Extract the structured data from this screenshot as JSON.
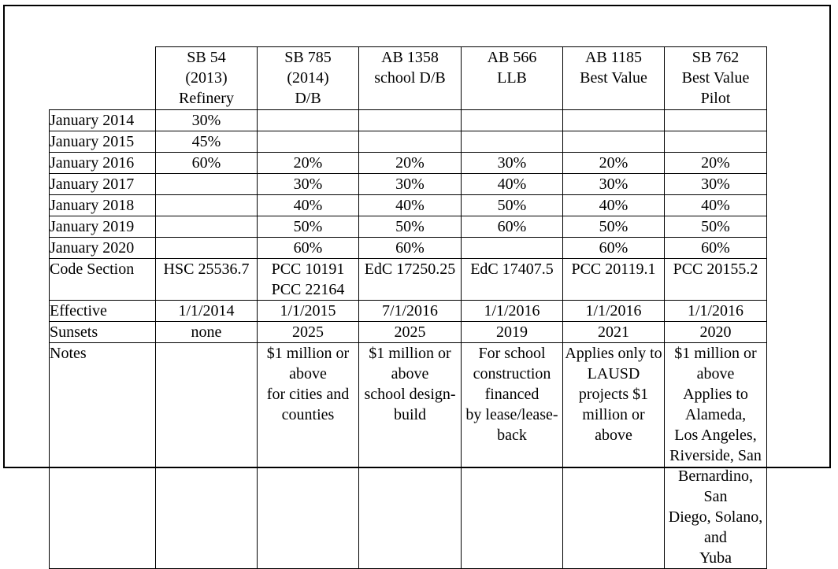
{
  "columns": [
    {
      "lines": [
        "SB 54",
        "(2013)",
        "Refinery"
      ]
    },
    {
      "lines": [
        "SB 785",
        "(2014)",
        "D/B"
      ]
    },
    {
      "lines": [
        "AB 1358",
        "school D/B"
      ]
    },
    {
      "lines": [
        "AB 566",
        "LLB"
      ]
    },
    {
      "lines": [
        "AB 1185",
        "Best Value"
      ]
    },
    {
      "lines": [
        "SB 762",
        "Best Value",
        "Pilot"
      ]
    }
  ],
  "year_rows": [
    {
      "label": "January  2014",
      "values": [
        "30%",
        "",
        "",
        "",
        "",
        ""
      ]
    },
    {
      "label": "January  2015",
      "values": [
        "45%",
        "",
        "",
        "",
        "",
        ""
      ]
    },
    {
      "label": "January  2016",
      "values": [
        "60%",
        "20%",
        "20%",
        "30%",
        "20%",
        "20%"
      ]
    },
    {
      "label": "January  2017",
      "values": [
        "",
        "30%",
        "30%",
        "40%",
        "30%",
        "30%"
      ]
    },
    {
      "label": "January  2018",
      "values": [
        "",
        "40%",
        "40%",
        "50%",
        "40%",
        "40%"
      ]
    },
    {
      "label": "January  2019",
      "values": [
        "",
        "50%",
        "50%",
        "60%",
        "50%",
        "50%"
      ]
    },
    {
      "label": "January  2020",
      "values": [
        "",
        "60%",
        "60%",
        "",
        "60%",
        "60%"
      ]
    }
  ],
  "code_section": {
    "label": "Code Section",
    "values": [
      [
        "HSC 25536.7"
      ],
      [
        "PCC 10191",
        "PCC 22164"
      ],
      [
        "EdC 17250.25"
      ],
      [
        "EdC 17407.5"
      ],
      [
        "PCC 20119.1"
      ],
      [
        "PCC 20155.2"
      ]
    ]
  },
  "effective": {
    "label": "Effective",
    "values": [
      "1/1/2014",
      "1/1/2015",
      "7/1/2016",
      "1/1/2016",
      "1/1/2016",
      "1/1/2016"
    ]
  },
  "sunsets": {
    "label": "Sunsets",
    "values": [
      "none",
      "2025",
      "2025",
      "2019",
      "2021",
      "2020"
    ]
  },
  "notes": {
    "label": "Notes",
    "values": [
      [],
      [
        "$1 million or above",
        "for cities and counties"
      ],
      [
        "$1 million or above",
        "school design-build"
      ],
      [
        "For  school",
        "construction financed",
        "by lease/lease-back"
      ],
      [
        "Applies only to",
        "LAUSD projects $1",
        "million or above"
      ],
      [
        "$1 million or above",
        "Applies to Alameda,",
        "Los Angeles,",
        "Riverside, San",
        "Bernardino, San",
        "Diego, Solano, and",
        "Yuba"
      ]
    ]
  }
}
